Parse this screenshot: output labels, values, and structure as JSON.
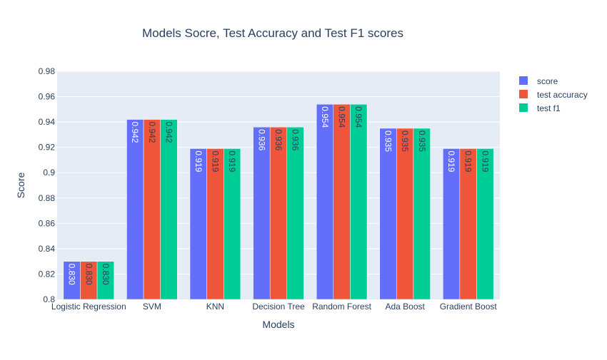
{
  "chart_data": {
    "type": "bar",
    "title": "Models Socre, Test Accuracy and Test F1 scores",
    "xlabel": "Models",
    "ylabel": "Score",
    "ylim": [
      0.8,
      0.98
    ],
    "y_ticks": [
      "0.8",
      "0.82",
      "0.84",
      "0.86",
      "0.88",
      "0.9",
      "0.92",
      "0.94",
      "0.96",
      "0.98"
    ],
    "categories": [
      "Logistic Regression",
      "SVM",
      "KNN",
      "Decision Tree",
      "Random Forest",
      "Ada Boost",
      "Gradient Boost"
    ],
    "series": [
      {
        "name": "score",
        "color": "#636efa",
        "label_color": "#ffffff",
        "values": [
          0.83,
          0.942,
          0.919,
          0.936,
          0.954,
          0.935,
          0.919
        ],
        "labels": [
          "0.830",
          "0.942",
          "0.919",
          "0.936",
          "0.954",
          "0.935",
          "0.919"
        ]
      },
      {
        "name": "test accuracy",
        "color": "#ef553b",
        "label_color": "#2a3f5f",
        "values": [
          0.83,
          0.942,
          0.919,
          0.936,
          0.954,
          0.935,
          0.919
        ],
        "labels": [
          "0.830",
          "0.942",
          "0.919",
          "0.936",
          "0.954",
          "0.935",
          "0.919"
        ]
      },
      {
        "name": "test f1",
        "color": "#00cc96",
        "label_color": "#2a3f5f",
        "values": [
          0.83,
          0.942,
          0.919,
          0.936,
          0.954,
          0.935,
          0.919
        ],
        "labels": [
          "0.830",
          "0.942",
          "0.919",
          "0.936",
          "0.954",
          "0.935",
          "0.919"
        ]
      }
    ],
    "grid": true,
    "legend_position": "top-right",
    "plot_background": "#e5ecf6"
  }
}
